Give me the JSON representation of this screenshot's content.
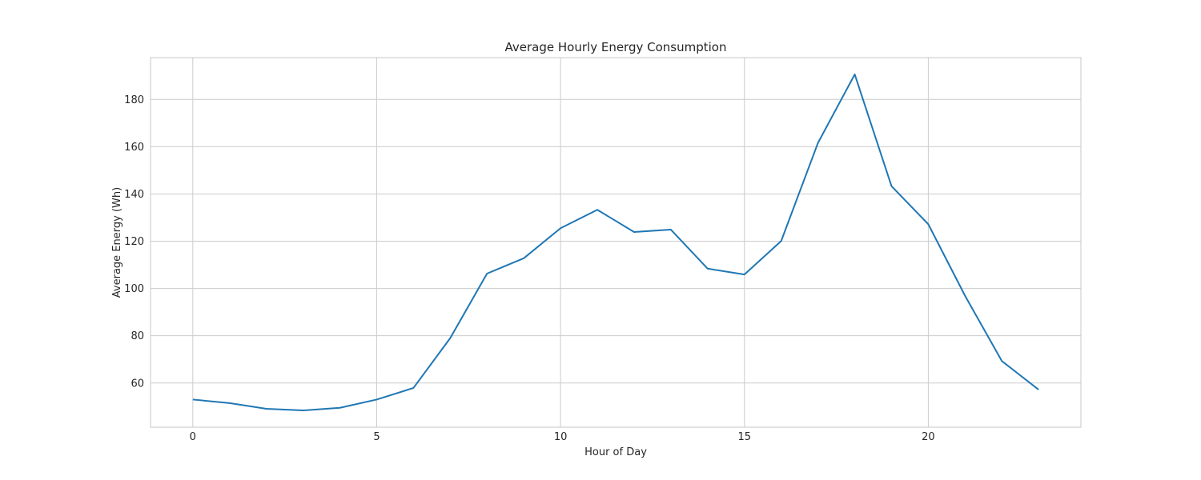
{
  "chart_data": {
    "type": "line",
    "title": "Average Hourly Energy Consumption",
    "xlabel": "Hour of Day",
    "ylabel": "Average Energy (Wh)",
    "xlim": [
      -1.15,
      24.15
    ],
    "ylim": [
      41.3,
      197.7
    ],
    "xticks": [
      0,
      5,
      10,
      15,
      20
    ],
    "yticks": [
      60,
      80,
      100,
      120,
      140,
      160,
      180
    ],
    "grid": true,
    "series": [
      {
        "color": "#1f77b4",
        "x": [
          0,
          1,
          2,
          3,
          4,
          5,
          6,
          7,
          8,
          9,
          10,
          11,
          12,
          13,
          14,
          15,
          16,
          17,
          18,
          19,
          20,
          21,
          22,
          23
        ],
        "y": [
          53.0,
          51.5,
          49.1,
          48.4,
          49.5,
          53.0,
          57.9,
          79.0,
          106.3,
          112.8,
          125.5,
          133.3,
          123.9,
          124.9,
          108.4,
          105.9,
          120.1,
          161.6,
          190.6,
          143.3,
          127.2,
          96.9,
          69.3,
          57.2
        ]
      }
    ]
  }
}
